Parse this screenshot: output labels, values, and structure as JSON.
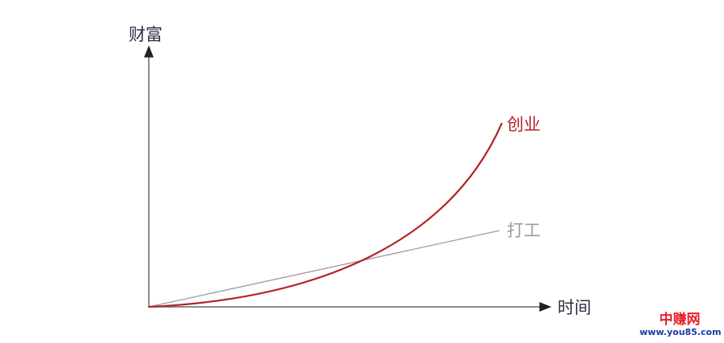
{
  "diagram": {
    "y_axis_label": "财富",
    "x_axis_label": "时间",
    "series": [
      {
        "name": "创业",
        "color": "#b3242a",
        "shape": "exponential"
      },
      {
        "name": "打工",
        "color": "#a09aa0",
        "shape": "linear"
      }
    ],
    "axis_color": "#333333"
  },
  "watermark": {
    "brand": "中赚网",
    "url": "www.you85.com"
  }
}
